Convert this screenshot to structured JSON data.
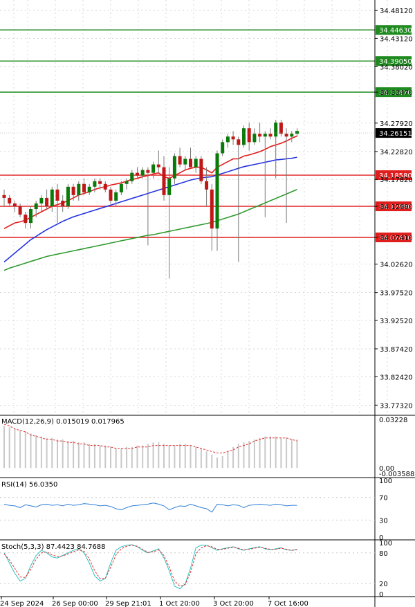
{
  "colors": {
    "background": "#ffffff",
    "grid": "#c8c8c8",
    "axis": "#000000",
    "candle_up": "#0a7a0a",
    "candle_down": "#c01818",
    "wick": "#777777",
    "ma_fast": "#e31a1a",
    "ma_mid": "#2433e0",
    "ma_slow": "#2f9a2f",
    "resistance": "#1f8a1f",
    "support": "#e01e1e",
    "current_price_bg": "#000000",
    "macd_hist": "#c8c8c8",
    "macd_signal": "#e03030",
    "rsi_line": "#2f7fd6",
    "stoch_main": "#2fbfbf",
    "stoch_signal": "#e03030"
  },
  "chart_data": [
    {
      "type": "candlestick",
      "panel": "price",
      "current_price": "34.26151",
      "y_ticks": [
        "34.48120",
        "34.43120",
        "34.38020",
        "34.33470",
        "34.27920",
        "34.22820",
        "34.17820",
        "34.12990",
        "34.07410",
        "34.02620",
        "33.97520",
        "33.92520",
        "33.87420",
        "33.82420",
        "33.77320"
      ],
      "ylim": [
        33.755,
        34.5
      ],
      "x_tick_labels": [
        "24 Sep 2024",
        "26 Sep 00:00",
        "29 Sep 21:01",
        "1 Oct 20:00",
        "3 Oct 20:00",
        "7 Oct 16:00"
      ],
      "resistance_levels": [
        "34.44630",
        "34.39050",
        "34.33470"
      ],
      "support_levels": [
        "34.18580",
        "34.12990",
        "34.07410"
      ],
      "ohlc": [
        [
          34.15,
          34.16,
          34.13,
          34.145
        ],
        [
          34.145,
          34.15,
          34.13,
          34.135
        ],
        [
          34.135,
          34.14,
          34.12,
          34.13
        ],
        [
          34.13,
          34.135,
          34.11,
          34.115
        ],
        [
          34.115,
          34.12,
          34.09,
          34.1
        ],
        [
          34.1,
          34.13,
          34.09,
          34.125
        ],
        [
          34.125,
          34.14,
          34.11,
          34.135
        ],
        [
          34.135,
          34.15,
          34.12,
          34.145
        ],
        [
          34.145,
          34.16,
          34.125,
          34.13
        ],
        [
          34.13,
          34.165,
          34.12,
          34.16
        ],
        [
          34.16,
          34.17,
          34.1,
          34.14
        ],
        [
          34.14,
          34.15,
          34.12,
          34.13
        ],
        [
          34.13,
          34.17,
          34.125,
          34.165
        ],
        [
          34.165,
          34.17,
          34.14,
          34.15
        ],
        [
          34.15,
          34.175,
          34.14,
          34.17
        ],
        [
          34.17,
          34.18,
          34.15,
          34.155
        ],
        [
          34.155,
          34.17,
          34.15,
          34.165
        ],
        [
          34.165,
          34.18,
          34.155,
          34.175
        ],
        [
          34.175,
          34.18,
          34.16,
          34.17
        ],
        [
          34.17,
          34.175,
          34.155,
          34.16
        ],
        [
          34.16,
          34.165,
          34.135,
          34.14
        ],
        [
          34.14,
          34.16,
          34.13,
          34.155
        ],
        [
          34.155,
          34.175,
          34.15,
          34.17
        ],
        [
          34.17,
          34.18,
          34.16,
          34.175
        ],
        [
          34.175,
          34.195,
          34.17,
          34.19
        ],
        [
          34.19,
          34.2,
          34.18,
          34.185
        ],
        [
          34.185,
          34.2,
          34.18,
          34.195
        ],
        [
          34.195,
          34.2,
          34.06,
          34.19
        ],
        [
          34.19,
          34.21,
          34.18,
          34.205
        ],
        [
          34.205,
          34.23,
          34.19,
          34.2
        ],
        [
          34.2,
          34.22,
          34.14,
          34.15
        ],
        [
          34.15,
          34.2,
          34.0,
          34.18
        ],
        [
          34.18,
          34.225,
          34.17,
          34.22
        ],
        [
          34.22,
          34.235,
          34.2,
          34.205
        ],
        [
          34.205,
          34.22,
          34.195,
          34.215
        ],
        [
          34.215,
          34.235,
          34.2,
          34.2
        ],
        [
          34.2,
          34.22,
          34.19,
          34.215
        ],
        [
          34.215,
          34.22,
          34.17,
          34.175
        ],
        [
          34.175,
          34.2,
          34.13,
          34.16
        ],
        [
          34.16,
          34.17,
          34.05,
          34.09
        ],
        [
          34.09,
          34.23,
          34.05,
          34.225
        ],
        [
          34.225,
          34.25,
          34.22,
          34.245
        ],
        [
          34.245,
          34.26,
          34.235,
          34.255
        ],
        [
          34.255,
          34.265,
          34.24,
          34.25
        ],
        [
          34.25,
          34.255,
          34.03,
          34.24
        ],
        [
          34.24,
          34.275,
          34.235,
          34.27
        ],
        [
          34.27,
          34.28,
          34.23,
          34.245
        ],
        [
          34.245,
          34.27,
          34.24,
          34.26
        ],
        [
          34.26,
          34.28,
          34.245,
          34.255
        ],
        [
          34.255,
          34.265,
          34.11,
          34.26
        ],
        [
          34.26,
          34.27,
          34.25,
          34.255
        ],
        [
          34.255,
          34.285,
          34.18,
          34.28
        ],
        [
          34.28,
          34.285,
          34.255,
          34.26
        ],
        [
          34.26,
          34.27,
          34.1,
          34.255
        ],
        [
          34.255,
          34.265,
          34.245,
          34.26
        ],
        [
          34.26,
          34.27,
          34.255,
          34.265
        ]
      ],
      "ma_fast": [
        34.09,
        34.095,
        34.1,
        34.102,
        34.105,
        34.11,
        34.115,
        34.12,
        34.125,
        34.13,
        34.133,
        34.136,
        34.14,
        34.145,
        34.15,
        34.153,
        34.156,
        34.16,
        34.163,
        34.165,
        34.168,
        34.17,
        34.172,
        34.175,
        34.178,
        34.18,
        34.183,
        34.185,
        34.188,
        34.19,
        34.183,
        34.18,
        34.185,
        34.19,
        34.195,
        34.198,
        34.2,
        34.2,
        34.195,
        34.19,
        34.2,
        34.205,
        34.21,
        34.215,
        34.215,
        34.22,
        34.222,
        34.225,
        34.228,
        34.232,
        34.237,
        34.24,
        34.243,
        34.247,
        34.252,
        34.256
      ],
      "ma_mid": [
        34.03,
        34.038,
        34.046,
        34.054,
        34.062,
        34.07,
        34.076,
        34.082,
        34.088,
        34.093,
        34.098,
        34.103,
        34.107,
        34.111,
        34.114,
        34.117,
        34.12,
        34.123,
        34.126,
        34.129,
        34.132,
        34.135,
        34.138,
        34.141,
        34.144,
        34.147,
        34.15,
        34.153,
        34.156,
        34.159,
        34.162,
        34.165,
        34.168,
        34.171,
        34.174,
        34.177,
        34.179,
        34.181,
        34.182,
        34.183,
        34.186,
        34.189,
        34.192,
        34.195,
        34.198,
        34.201,
        34.203,
        34.205,
        34.207,
        34.209,
        34.211,
        34.213,
        34.214,
        34.215,
        34.216,
        34.218
      ],
      "ma_slow": [
        34.015,
        34.019,
        34.022,
        34.025,
        34.028,
        34.031,
        34.034,
        34.037,
        34.04,
        34.042,
        34.044,
        34.046,
        34.048,
        34.05,
        34.052,
        34.054,
        34.056,
        34.058,
        34.06,
        34.062,
        34.064,
        34.066,
        34.068,
        34.07,
        34.072,
        34.074,
        34.076,
        34.078,
        34.079,
        34.081,
        34.083,
        34.085,
        34.087,
        34.089,
        34.091,
        34.093,
        34.095,
        34.097,
        34.099,
        34.101,
        34.104,
        34.107,
        34.11,
        34.113,
        34.116,
        34.12,
        34.124,
        34.128,
        34.132,
        34.136,
        34.14,
        34.144,
        34.148,
        34.152,
        34.156,
        34.16
      ]
    },
    {
      "type": "bar",
      "panel": "macd",
      "label": "MACD(12,26,9) 0.015019 0.017965",
      "y_ticks": [
        "0.03228",
        "0.00",
        "-0.003588"
      ],
      "ylim": [
        -0.003588,
        0.03228
      ],
      "histogram": [
        0.028,
        0.027,
        0.026,
        0.025,
        0.024,
        0.023,
        0.022,
        0.021,
        0.02,
        0.02,
        0.019,
        0.019,
        0.018,
        0.018,
        0.017,
        0.017,
        0.016,
        0.016,
        0.015,
        0.015,
        0.014,
        0.013,
        0.013,
        0.014,
        0.014,
        0.015,
        0.015,
        0.016,
        0.017,
        0.017,
        0.016,
        0.015,
        0.015,
        0.016,
        0.016,
        0.015,
        0.014,
        0.013,
        0.011,
        0.009,
        0.007,
        0.008,
        0.011,
        0.014,
        0.016,
        0.017,
        0.018,
        0.019,
        0.02,
        0.021,
        0.021,
        0.021,
        0.02,
        0.02,
        0.019,
        0.019
      ],
      "signal": [
        0.029,
        0.028,
        0.026,
        0.025,
        0.024,
        0.022,
        0.021,
        0.02,
        0.019,
        0.019,
        0.018,
        0.018,
        0.017,
        0.017,
        0.016,
        0.016,
        0.015,
        0.015,
        0.015,
        0.014,
        0.014,
        0.013,
        0.013,
        0.013,
        0.013,
        0.014,
        0.014,
        0.014,
        0.015,
        0.015,
        0.015,
        0.015,
        0.015,
        0.015,
        0.015,
        0.015,
        0.014,
        0.013,
        0.012,
        0.011,
        0.01,
        0.01,
        0.011,
        0.012,
        0.014,
        0.015,
        0.016,
        0.018,
        0.019,
        0.02,
        0.02,
        0.02,
        0.02,
        0.02,
        0.019,
        0.018
      ]
    },
    {
      "type": "line",
      "panel": "rsi",
      "label": "RSI(14) 56.0350",
      "y_ticks": [
        "100",
        "70",
        "30",
        "0"
      ],
      "ylim": [
        0,
        100
      ],
      "values": [
        58,
        56,
        55,
        52,
        57,
        55,
        53,
        57,
        58,
        56,
        57,
        55,
        58,
        56,
        57,
        59,
        58,
        57,
        55,
        56,
        54,
        50,
        48,
        52,
        55,
        56,
        57,
        58,
        60,
        58,
        55,
        48,
        52,
        55,
        54,
        58,
        55,
        52,
        50,
        44,
        58,
        57,
        55,
        57,
        56,
        52,
        56,
        57,
        58,
        57,
        56,
        58,
        57,
        55,
        56,
        56
      ]
    },
    {
      "type": "line",
      "panel": "stoch",
      "label": "Stoch(5,3,3) 87.4423 84.7688",
      "y_ticks": [
        "100",
        "80",
        "20",
        "0"
      ],
      "ylim": [
        0,
        100
      ],
      "main": [
        80,
        60,
        40,
        25,
        30,
        55,
        75,
        85,
        80,
        72,
        70,
        75,
        80,
        85,
        88,
        80,
        60,
        35,
        25,
        30,
        60,
        85,
        92,
        95,
        96,
        92,
        85,
        80,
        84,
        88,
        70,
        45,
        15,
        10,
        20,
        50,
        90,
        95,
        95,
        90,
        85,
        88,
        90,
        92,
        88,
        85,
        88,
        90,
        92,
        88,
        86,
        88,
        90,
        86,
        85,
        87
      ],
      "signal": [
        78,
        66,
        50,
        33,
        32,
        48,
        68,
        80,
        82,
        76,
        73,
        74,
        78,
        82,
        86,
        83,
        68,
        45,
        30,
        30,
        52,
        76,
        88,
        93,
        95,
        93,
        87,
        81,
        82,
        86,
        75,
        52,
        25,
        15,
        18,
        42,
        78,
        90,
        94,
        92,
        87,
        87,
        89,
        91,
        89,
        86,
        87,
        89,
        91,
        89,
        87,
        87,
        89,
        87,
        85,
        86
      ]
    }
  ]
}
